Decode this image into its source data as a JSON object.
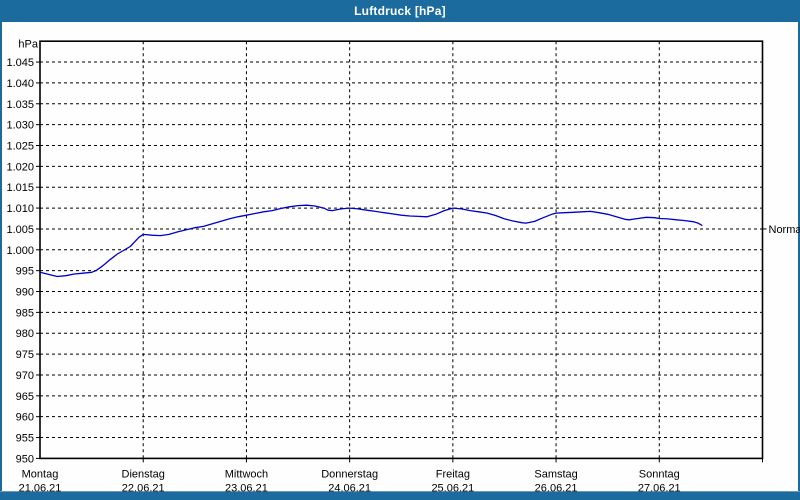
{
  "window": {
    "title": "Luftdruck [hPa]"
  },
  "colors": {
    "frame": "#1c6b9e",
    "frame_light": "#6699bb",
    "background": "#fdfefd",
    "line": "#0000c8",
    "grid": "#000000",
    "text": "#000000",
    "title_text": "#ffffff"
  },
  "chart_data": {
    "type": "line",
    "title": "Luftdruck [hPa]",
    "y_unit": "hPa",
    "ylim": [
      950,
      1050
    ],
    "ytick_step": 5,
    "ytick_labels": [
      "1.045",
      "1.040",
      "1.035",
      "1.030",
      "1.025",
      "1.020",
      "1.015",
      "1.010",
      "1.005",
      "1.000",
      "995",
      "990",
      "985",
      "980",
      "975",
      "970",
      "965",
      "960",
      "955",
      "950"
    ],
    "grid": "dashed",
    "legend": "none",
    "x_axis": {
      "hours_total": 168,
      "days": [
        {
          "name": "Montag",
          "date": "21.06.21"
        },
        {
          "name": "Dienstag",
          "date": "22.06.21"
        },
        {
          "name": "Mittwoch",
          "date": "23.06.21"
        },
        {
          "name": "Donnerstag",
          "date": "24.06.21"
        },
        {
          "name": "Freitag",
          "date": "25.06.21"
        },
        {
          "name": "Samstag",
          "date": "26.06.21"
        },
        {
          "name": "Sonntag",
          "date": "27.06.21"
        }
      ]
    },
    "annotations": [
      {
        "label": "Normal",
        "value": 1005,
        "side": "right"
      }
    ],
    "series": [
      {
        "name": "Luftdruck",
        "color": "#0000c8",
        "points_hours_hpa": [
          [
            0,
            994.6
          ],
          [
            2,
            994.1
          ],
          [
            4,
            993.6
          ],
          [
            6,
            993.8
          ],
          [
            8,
            994.2
          ],
          [
            10,
            994.4
          ],
          [
            12,
            994.6
          ],
          [
            13,
            995.0
          ],
          [
            14,
            995.7
          ],
          [
            15,
            996.5
          ],
          [
            16,
            997.4
          ],
          [
            17,
            998.2
          ],
          [
            18,
            999.0
          ],
          [
            19,
            999.6
          ],
          [
            20,
            1000.2
          ],
          [
            21,
            1000.8
          ],
          [
            22,
            1001.9
          ],
          [
            23,
            1003.0
          ],
          [
            24,
            1003.7
          ],
          [
            26,
            1003.5
          ],
          [
            28,
            1003.4
          ],
          [
            30,
            1003.7
          ],
          [
            32,
            1004.3
          ],
          [
            34,
            1004.8
          ],
          [
            36,
            1005.3
          ],
          [
            38,
            1005.6
          ],
          [
            40,
            1006.2
          ],
          [
            42,
            1006.8
          ],
          [
            44,
            1007.4
          ],
          [
            46,
            1007.9
          ],
          [
            48,
            1008.3
          ],
          [
            50,
            1008.7
          ],
          [
            52,
            1009.1
          ],
          [
            54,
            1009.4
          ],
          [
            56,
            1009.9
          ],
          [
            58,
            1010.3
          ],
          [
            60,
            1010.6
          ],
          [
            62,
            1010.7
          ],
          [
            64,
            1010.5
          ],
          [
            66,
            1010.0
          ],
          [
            67,
            1009.5
          ],
          [
            68,
            1009.4
          ],
          [
            70,
            1009.8
          ],
          [
            72,
            1010.0
          ],
          [
            74,
            1009.8
          ],
          [
            76,
            1009.5
          ],
          [
            78,
            1009.2
          ],
          [
            80,
            1008.9
          ],
          [
            82,
            1008.6
          ],
          [
            84,
            1008.3
          ],
          [
            86,
            1008.1
          ],
          [
            88,
            1008.0
          ],
          [
            90,
            1007.9
          ],
          [
            92,
            1008.5
          ],
          [
            94,
            1009.4
          ],
          [
            96,
            1010.0
          ],
          [
            98,
            1009.8
          ],
          [
            100,
            1009.4
          ],
          [
            102,
            1009.1
          ],
          [
            104,
            1008.8
          ],
          [
            106,
            1008.2
          ],
          [
            108,
            1007.4
          ],
          [
            110,
            1006.9
          ],
          [
            112,
            1006.5
          ],
          [
            113,
            1006.4
          ],
          [
            115,
            1006.8
          ],
          [
            117,
            1007.7
          ],
          [
            119,
            1008.5
          ],
          [
            120,
            1008.8
          ],
          [
            122,
            1008.9
          ],
          [
            124,
            1009.0
          ],
          [
            126,
            1009.1
          ],
          [
            128,
            1009.2
          ],
          [
            130,
            1008.9
          ],
          [
            132,
            1008.5
          ],
          [
            134,
            1007.9
          ],
          [
            136,
            1007.3
          ],
          [
            137,
            1007.2
          ],
          [
            139,
            1007.5
          ],
          [
            141,
            1007.8
          ],
          [
            143,
            1007.7
          ],
          [
            144,
            1007.5
          ],
          [
            146,
            1007.4
          ],
          [
            148,
            1007.2
          ],
          [
            150,
            1007.0
          ],
          [
            152,
            1006.7
          ],
          [
            153,
            1006.4
          ],
          [
            154,
            1005.8
          ]
        ]
      }
    ]
  }
}
